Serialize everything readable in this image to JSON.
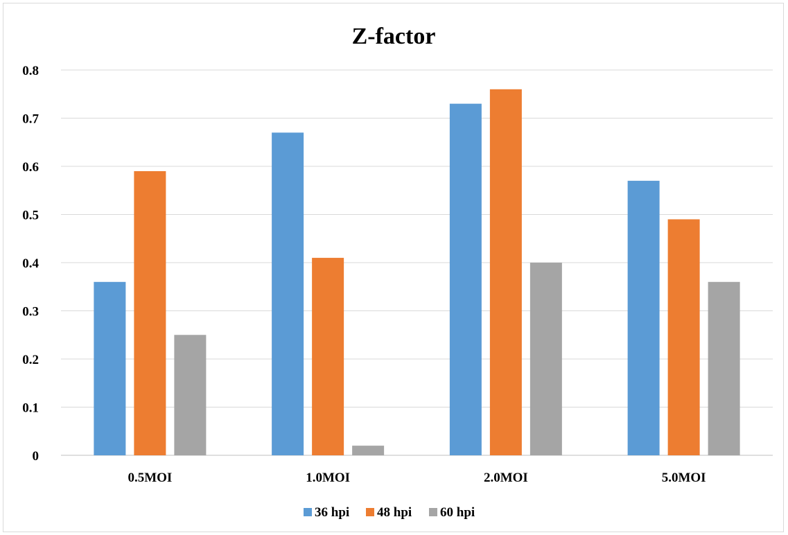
{
  "chart_data": {
    "type": "bar",
    "title": "Z-factor",
    "xlabel": "",
    "ylabel": "",
    "categories": [
      "0.5MOI",
      "1.0MOI",
      "2.0MOI",
      "5.0MOI"
    ],
    "series": [
      {
        "name": "36 hpi",
        "color": "#5b9bd5",
        "values": [
          0.36,
          0.67,
          0.73,
          0.57
        ]
      },
      {
        "name": "48 hpi",
        "color": "#ed7d31",
        "values": [
          0.59,
          0.41,
          0.76,
          0.49
        ]
      },
      {
        "name": "60 hpi",
        "color": "#a5a5a5",
        "values": [
          0.25,
          0.02,
          0.4,
          0.36
        ]
      }
    ],
    "ylim": [
      0,
      0.8
    ],
    "yticks": [
      "0",
      "0.1",
      "0.2",
      "0.3",
      "0.4",
      "0.5",
      "0.6",
      "0.7",
      "0.8"
    ],
    "grid": true,
    "legend_position": "bottom"
  }
}
